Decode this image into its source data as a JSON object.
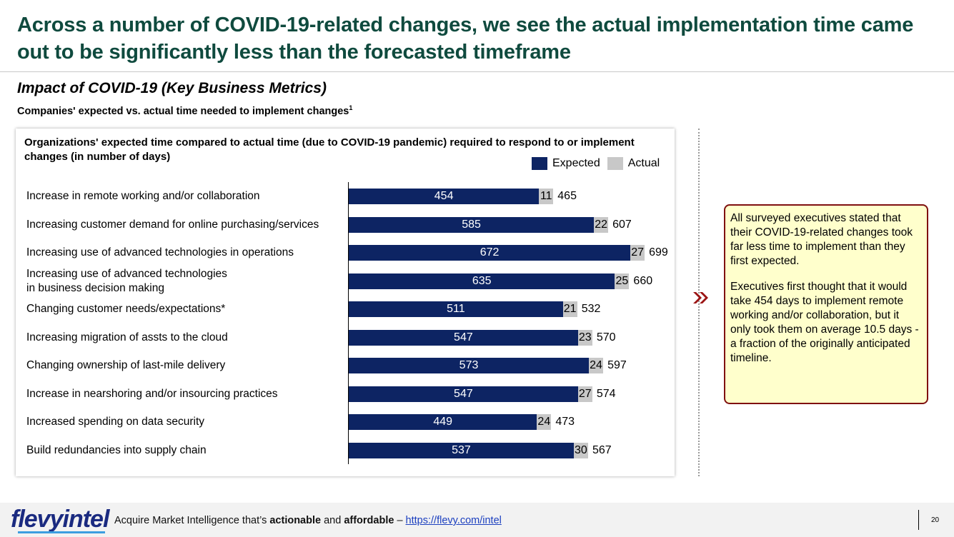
{
  "header": {
    "title": "Across a number of COVID-19-related changes, we see the actual implementation time came out to be significantly less than the forecasted timeframe",
    "subtitle": "Impact of COVID-19 (Key Business Metrics)",
    "caption": "Companies' expected vs. actual time needed to implement changes",
    "caption_footnote": "1"
  },
  "chart_data": {
    "type": "bar",
    "orientation": "horizontal",
    "stacked": true,
    "title": "Organizations' expected time compared to actual time (due to COVID-19 pandemic) required to respond to or implement changes (in number of days)",
    "legend_position": "top-right",
    "colors": {
      "Expected": "#0d2463",
      "Actual": "#c8c8c8"
    },
    "categories": [
      "Increase in remote working and/or collaboration",
      "Increasing customer demand for online purchasing/services",
      "Increasing use of advanced technologies in operations",
      "Increasing use of advanced technologies\nin business decision making",
      "Changing customer needs/expectations*",
      "Increasing migration of assts to the cloud",
      "Changing ownership of last-mile delivery",
      "Increase in nearshoring and/or insourcing practices",
      "Increased spending on data security",
      "Build redundancies into supply chain"
    ],
    "series": [
      {
        "name": "Expected",
        "values": [
          454,
          585,
          672,
          635,
          511,
          547,
          573,
          547,
          449,
          537
        ]
      },
      {
        "name": "Actual",
        "values": [
          11,
          22,
          27,
          25,
          21,
          23,
          24,
          27,
          24,
          30
        ]
      }
    ],
    "totals": [
      465,
      607,
      699,
      660,
      532,
      570,
      597,
      574,
      473,
      567
    ]
  },
  "note": {
    "paragraph1": "All surveyed executives stated that their COVID-19-related changes took far less time to implement than they first expected.",
    "paragraph2": "Executives first thought that it would take 454 days to implement remote working and/or collaboration, but it only took them on average 10.5 days - a fraction of the originally anticipated timeline."
  },
  "footer": {
    "logo": "flevyintel",
    "tagline_prefix": "Acquire Market Intelligence that’s ",
    "tagline_bold1": "actionable",
    "tagline_mid": " and ",
    "tagline_bold2": "affordable",
    "tagline_dash": " – ",
    "link": "https://flevy.com/intel",
    "page_number": "20"
  }
}
